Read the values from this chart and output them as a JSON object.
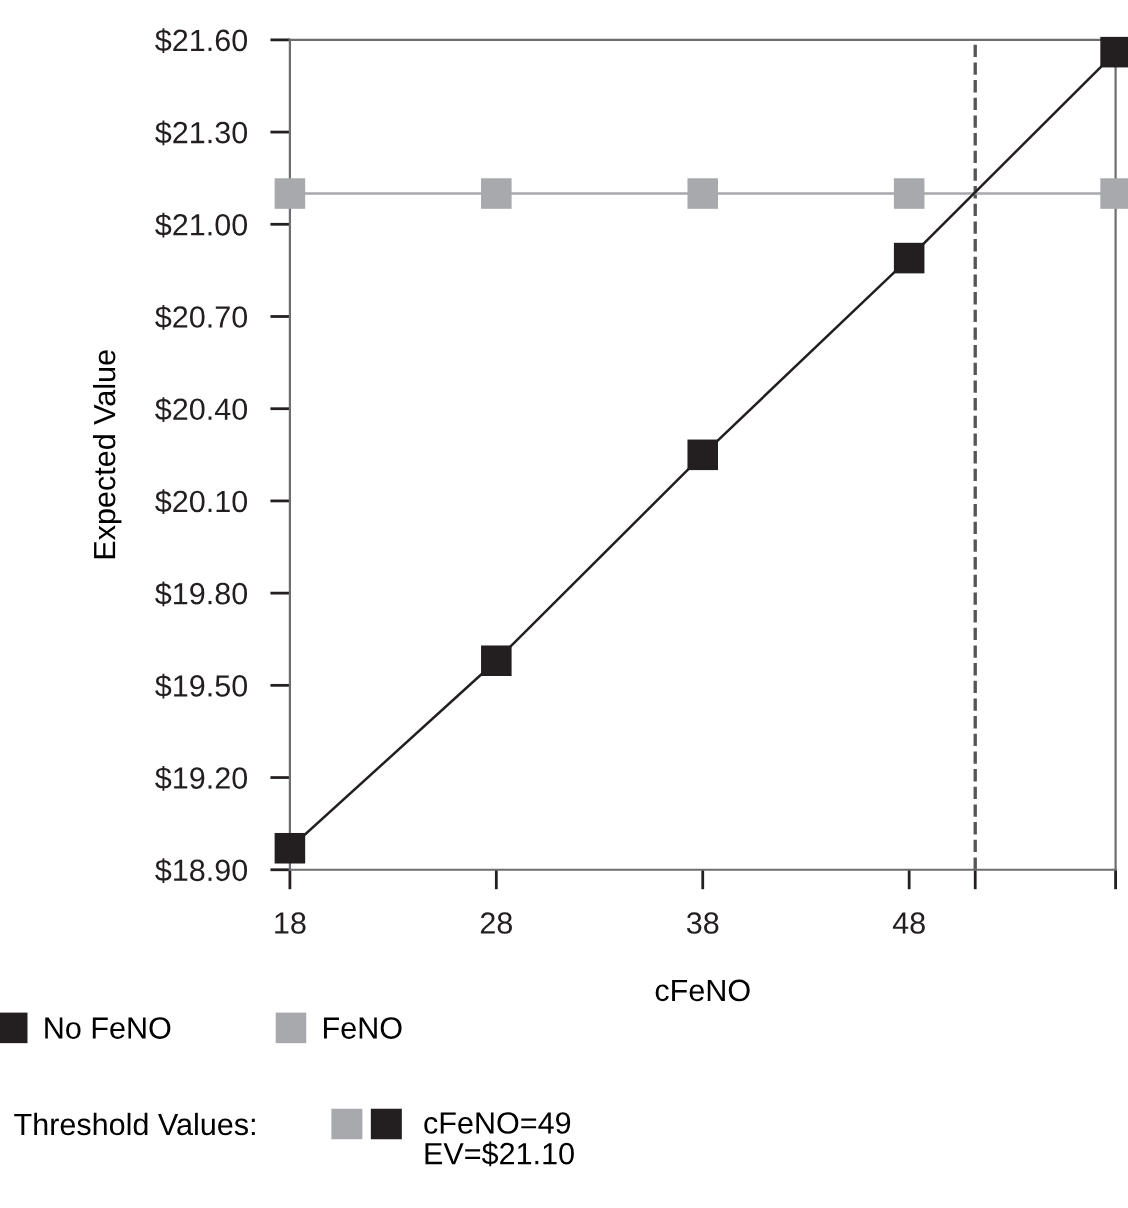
{
  "chart_data": {
    "type": "line",
    "xlabel": "cFeNO",
    "ylabel": "Expected Value",
    "x": [
      18,
      28,
      38,
      48,
      58
    ],
    "series": [
      {
        "name": "No FeNO",
        "color": "#231f20",
        "values": [
          18.97,
          19.58,
          20.25,
          20.89,
          21.56
        ]
      },
      {
        "name": "FeNO",
        "color": "#a7a9ac",
        "values": [
          21.1,
          21.1,
          21.1,
          21.1,
          21.1
        ]
      }
    ],
    "xlim": [
      18,
      58
    ],
    "xticks": [
      18,
      28,
      38,
      48,
      {
        "value": 51.2,
        "label": null
      },
      {
        "value": 58,
        "label": null
      }
    ],
    "ylim": [
      18.9,
      21.6
    ],
    "yticks": [
      {
        "value": 18.9,
        "label": "$18.90"
      },
      {
        "value": 19.2,
        "label": "$19.20"
      },
      {
        "value": 19.5,
        "label": "$19.50"
      },
      {
        "value": 19.8,
        "label": "$19.80"
      },
      {
        "value": 20.1,
        "label": "$20.10"
      },
      {
        "value": 20.4,
        "label": "$20.40"
      },
      {
        "value": 20.7,
        "label": "$20.70"
      },
      {
        "value": 21.0,
        "label": "$21.00"
      },
      {
        "value": 21.3,
        "label": "$21.30"
      },
      {
        "value": 21.6,
        "label": "$21.60"
      }
    ],
    "ref_lines": [
      {
        "axis": "x",
        "value": 51.2,
        "color": "#555555",
        "line_style": "dashed"
      }
    ],
    "annotations": [
      "Threshold Values:",
      "cFeNO=49\nEV=$21.10"
    ],
    "marker": "square",
    "line_style": "solid",
    "grid": false,
    "legend": "bottom left"
  }
}
